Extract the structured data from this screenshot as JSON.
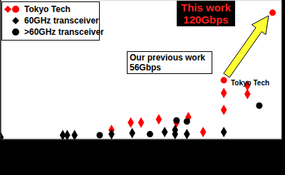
{
  "chart_data": {
    "type": "scatter",
    "xlim": [
      0,
      19
    ],
    "xticks": [
      0,
      1,
      2,
      3,
      4,
      5,
      6,
      7,
      8,
      9,
      10,
      11,
      12,
      13,
      14,
      15,
      16,
      17,
      18,
      19
    ],
    "ylim": [
      0,
      132
    ],
    "yticks": [
      0,
      15,
      30,
      45,
      60,
      75,
      90,
      105,
      120
    ],
    "grid": true,
    "tick_labels": false,
    "legend": "top-left",
    "series": [
      {
        "name": "Tokyo Tech",
        "color": "#ff0000",
        "marker": "diamond",
        "x": [
          7.5,
          8.8,
          9.5,
          10.7,
          11.9,
          12.7,
          13.7,
          15.1,
          15.1,
          16.7,
          16.7
        ],
        "values": [
          9,
          16,
          16,
          19,
          16,
          21,
          7,
          28,
          44,
          43,
          51
        ]
      },
      {
        "name": "Tokyo Tech",
        "color": "#ff0000",
        "marker": "circle",
        "x": [
          15.1,
          18.4
        ],
        "values": [
          56,
          120
        ]
      },
      {
        "name": "60GHz transceiver",
        "color": "#000000",
        "marker": "diamond",
        "x": [
          0,
          4.2,
          4.5,
          5.0,
          7.5,
          8.9,
          11.1,
          11.8,
          11.8,
          12.6,
          15.1
        ],
        "values": [
          2,
          4,
          4,
          4,
          5,
          6,
          7,
          5,
          9,
          5,
          7
        ]
      },
      {
        "name": ">60GHz transceiver",
        "color": "#000000",
        "marker": "circle",
        "x": [
          6.7,
          10.1,
          11.9,
          12.6,
          17.5
        ],
        "values": [
          4,
          5,
          18,
          17,
          32
        ]
      }
    ],
    "annotations": [
      "This work",
      "120Gbps",
      "Our previous work",
      "56Gbps",
      "Tokyo Tech"
    ]
  }
}
